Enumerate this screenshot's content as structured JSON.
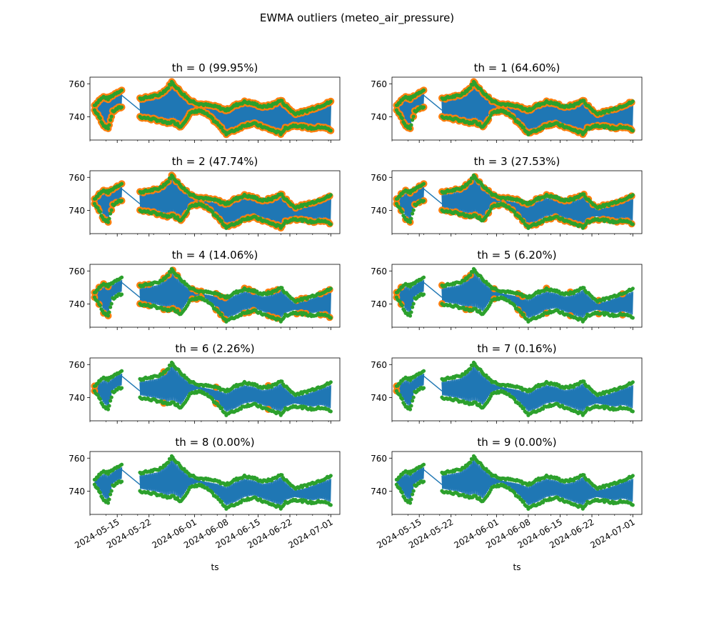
{
  "figure": {
    "suptitle": "EWMA outliers (meteo_air_pressure)"
  },
  "colors": {
    "series_line": "#1f77b4",
    "outlier": "#ff7f0e",
    "normal": "#2ca02c"
  },
  "chart_data": [
    {
      "type": "scatter",
      "title": "th = 0 (99.95%)",
      "threshold": 0,
      "outlier_percent": 99.95,
      "xlabel": "",
      "ylabel": "",
      "ylim": [
        726,
        764
      ],
      "yticks": [
        740,
        760
      ],
      "xlim": [
        "2024-05-09",
        "2024-07-03"
      ],
      "xticks": [
        "2024-05-15",
        "2024-05-22",
        "2024-06-01",
        "2024-06-08",
        "2024-06-15",
        "2024-06-22",
        "2024-07-01"
      ],
      "show_xtick_labels": false,
      "grid": false
    },
    {
      "type": "scatter",
      "title": "th = 1 (64.60%)",
      "threshold": 1,
      "outlier_percent": 64.6,
      "xlabel": "",
      "ylabel": "",
      "ylim": [
        726,
        764
      ],
      "yticks": [
        740,
        760
      ],
      "xlim": [
        "2024-05-09",
        "2024-07-03"
      ],
      "xticks": [
        "2024-05-15",
        "2024-05-22",
        "2024-06-01",
        "2024-06-08",
        "2024-06-15",
        "2024-06-22",
        "2024-07-01"
      ],
      "show_xtick_labels": false,
      "grid": false
    },
    {
      "type": "scatter",
      "title": "th = 2 (47.74%)",
      "threshold": 2,
      "outlier_percent": 47.74,
      "xlabel": "",
      "ylabel": "",
      "ylim": [
        726,
        764
      ],
      "yticks": [
        740,
        760
      ],
      "xlim": [
        "2024-05-09",
        "2024-07-03"
      ],
      "xticks": [
        "2024-05-15",
        "2024-05-22",
        "2024-06-01",
        "2024-06-08",
        "2024-06-15",
        "2024-06-22",
        "2024-07-01"
      ],
      "show_xtick_labels": false,
      "grid": false
    },
    {
      "type": "scatter",
      "title": "th = 3 (27.53%)",
      "threshold": 3,
      "outlier_percent": 27.53,
      "xlabel": "",
      "ylabel": "",
      "ylim": [
        726,
        764
      ],
      "yticks": [
        740,
        760
      ],
      "xlim": [
        "2024-05-09",
        "2024-07-03"
      ],
      "xticks": [
        "2024-05-15",
        "2024-05-22",
        "2024-06-01",
        "2024-06-08",
        "2024-06-15",
        "2024-06-22",
        "2024-07-01"
      ],
      "show_xtick_labels": false,
      "grid": false
    },
    {
      "type": "scatter",
      "title": "th = 4 (14.06%)",
      "threshold": 4,
      "outlier_percent": 14.06,
      "xlabel": "",
      "ylabel": "",
      "ylim": [
        726,
        764
      ],
      "yticks": [
        740,
        760
      ],
      "xlim": [
        "2024-05-09",
        "2024-07-03"
      ],
      "xticks": [
        "2024-05-15",
        "2024-05-22",
        "2024-06-01",
        "2024-06-08",
        "2024-06-15",
        "2024-06-22",
        "2024-07-01"
      ],
      "show_xtick_labels": false,
      "grid": false
    },
    {
      "type": "scatter",
      "title": "th = 5 (6.20%)",
      "threshold": 5,
      "outlier_percent": 6.2,
      "xlabel": "",
      "ylabel": "",
      "ylim": [
        726,
        764
      ],
      "yticks": [
        740,
        760
      ],
      "xlim": [
        "2024-05-09",
        "2024-07-03"
      ],
      "xticks": [
        "2024-05-15",
        "2024-05-22",
        "2024-06-01",
        "2024-06-08",
        "2024-06-15",
        "2024-06-22",
        "2024-07-01"
      ],
      "show_xtick_labels": false,
      "grid": false
    },
    {
      "type": "scatter",
      "title": "th = 6 (2.26%)",
      "threshold": 6,
      "outlier_percent": 2.26,
      "xlabel": "",
      "ylabel": "",
      "ylim": [
        726,
        764
      ],
      "yticks": [
        740,
        760
      ],
      "xlim": [
        "2024-05-09",
        "2024-07-03"
      ],
      "xticks": [
        "2024-05-15",
        "2024-05-22",
        "2024-06-01",
        "2024-06-08",
        "2024-06-15",
        "2024-06-22",
        "2024-07-01"
      ],
      "show_xtick_labels": false,
      "grid": false
    },
    {
      "type": "scatter",
      "title": "th = 7 (0.16%)",
      "threshold": 7,
      "outlier_percent": 0.16,
      "xlabel": "",
      "ylabel": "",
      "ylim": [
        726,
        764
      ],
      "yticks": [
        740,
        760
      ],
      "xlim": [
        "2024-05-09",
        "2024-07-03"
      ],
      "xticks": [
        "2024-05-15",
        "2024-05-22",
        "2024-06-01",
        "2024-06-08",
        "2024-06-15",
        "2024-06-22",
        "2024-07-01"
      ],
      "show_xtick_labels": false,
      "grid": false
    },
    {
      "type": "scatter",
      "title": "th = 8 (0.00%)",
      "threshold": 8,
      "outlier_percent": 0.0,
      "xlabel": "ts",
      "ylabel": "",
      "ylim": [
        726,
        764
      ],
      "yticks": [
        740,
        760
      ],
      "xlim": [
        "2024-05-09",
        "2024-07-03"
      ],
      "xticks": [
        "2024-05-15",
        "2024-05-22",
        "2024-06-01",
        "2024-06-08",
        "2024-06-15",
        "2024-06-22",
        "2024-07-01"
      ],
      "show_xtick_labels": true,
      "grid": false
    },
    {
      "type": "scatter",
      "title": "th = 9 (0.00%)",
      "threshold": 9,
      "outlier_percent": 0.0,
      "xlabel": "ts",
      "ylabel": "",
      "ylim": [
        726,
        764
      ],
      "yticks": [
        740,
        760
      ],
      "xlim": [
        "2024-05-09",
        "2024-07-03"
      ],
      "xticks": [
        "2024-05-15",
        "2024-05-22",
        "2024-06-01",
        "2024-06-08",
        "2024-06-15",
        "2024-06-22",
        "2024-07-01"
      ],
      "show_xtick_labels": true,
      "grid": false
    }
  ],
  "series": {
    "envelope_upper": [
      [
        "2024-05-10",
        747
      ],
      [
        "2024-05-11",
        750
      ],
      [
        "2024-05-12",
        752
      ],
      [
        "2024-05-13",
        751
      ],
      [
        "2024-05-14",
        753
      ],
      [
        "2024-05-15",
        755
      ],
      [
        "2024-05-16",
        756
      ],
      [
        "2024-05-20",
        751
      ],
      [
        "2024-05-22",
        752
      ],
      [
        "2024-05-24",
        753
      ],
      [
        "2024-05-26",
        757
      ],
      [
        "2024-05-27",
        761
      ],
      [
        "2024-05-28",
        758
      ],
      [
        "2024-05-29",
        755
      ],
      [
        "2024-05-31",
        750
      ],
      [
        "2024-06-02",
        748
      ],
      [
        "2024-06-04",
        747
      ],
      [
        "2024-06-06",
        746
      ],
      [
        "2024-06-08",
        744
      ],
      [
        "2024-06-10",
        747
      ],
      [
        "2024-06-12",
        749
      ],
      [
        "2024-06-14",
        748
      ],
      [
        "2024-06-16",
        746
      ],
      [
        "2024-06-18",
        747
      ],
      [
        "2024-06-20",
        750
      ],
      [
        "2024-06-21",
        747
      ],
      [
        "2024-06-23",
        742
      ],
      [
        "2024-06-25",
        743
      ],
      [
        "2024-06-27",
        745
      ],
      [
        "2024-06-29",
        747
      ],
      [
        "2024-07-01",
        749
      ]
    ],
    "envelope_lower": [
      [
        "2024-05-10",
        744
      ],
      [
        "2024-05-11",
        740
      ],
      [
        "2024-05-12",
        735
      ],
      [
        "2024-05-13",
        733
      ],
      [
        "2024-05-14",
        743
      ],
      [
        "2024-05-15",
        745
      ],
      [
        "2024-05-16",
        746
      ],
      [
        "2024-05-20",
        740
      ],
      [
        "2024-05-22",
        739
      ],
      [
        "2024-05-24",
        738
      ],
      [
        "2024-05-26",
        736
      ],
      [
        "2024-05-27",
        737
      ],
      [
        "2024-05-28",
        736
      ],
      [
        "2024-05-29",
        734
      ],
      [
        "2024-05-31",
        742
      ],
      [
        "2024-06-02",
        744
      ],
      [
        "2024-06-04",
        741
      ],
      [
        "2024-06-06",
        736
      ],
      [
        "2024-06-08",
        730
      ],
      [
        "2024-06-10",
        732
      ],
      [
        "2024-06-12",
        735
      ],
      [
        "2024-06-14",
        736
      ],
      [
        "2024-06-16",
        734
      ],
      [
        "2024-06-18",
        732
      ],
      [
        "2024-06-20",
        730
      ],
      [
        "2024-06-21",
        733
      ],
      [
        "2024-06-23",
        735
      ],
      [
        "2024-06-25",
        734
      ],
      [
        "2024-06-27",
        733
      ],
      [
        "2024-06-29",
        734
      ],
      [
        "2024-07-01",
        732
      ]
    ],
    "gap": [
      "2024-05-17",
      "2024-05-19"
    ]
  }
}
